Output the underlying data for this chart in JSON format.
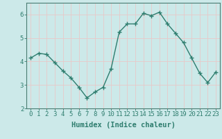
{
  "x": [
    0,
    1,
    2,
    3,
    4,
    5,
    6,
    7,
    8,
    9,
    10,
    11,
    12,
    13,
    14,
    15,
    16,
    17,
    18,
    19,
    20,
    21,
    22,
    23
  ],
  "y": [
    4.15,
    4.35,
    4.3,
    3.95,
    3.6,
    3.3,
    2.9,
    2.45,
    2.7,
    2.9,
    3.7,
    5.25,
    5.6,
    5.6,
    6.05,
    5.95,
    6.1,
    5.6,
    5.2,
    4.8,
    4.15,
    3.5,
    3.1,
    3.55
  ],
  "line_color": "#2e7d6e",
  "marker": "+",
  "markersize": 4,
  "linewidth": 1.0,
  "xlabel": "Humidex (Indice chaleur)",
  "xlim": [
    -0.5,
    23.5
  ],
  "ylim": [
    2,
    6.5
  ],
  "yticks": [
    2,
    3,
    4,
    5,
    6
  ],
  "xticks": [
    0,
    1,
    2,
    3,
    4,
    5,
    6,
    7,
    8,
    9,
    10,
    11,
    12,
    13,
    14,
    15,
    16,
    17,
    18,
    19,
    20,
    21,
    22,
    23
  ],
  "xtick_labels": [
    "0",
    "1",
    "2",
    "3",
    "4",
    "5",
    "6",
    "7",
    "8",
    "9",
    "10",
    "11",
    "12",
    "13",
    "14",
    "15",
    "16",
    "17",
    "18",
    "19",
    "20",
    "21",
    "22",
    "23"
  ],
  "bg_color": "#cce9e9",
  "grid_color_major": "#e8c8c8",
  "grid_color_minor": "#e8c8c8",
  "axis_color": "#4a7c72",
  "tick_color": "#2e7d6e",
  "label_fontsize": 7.5,
  "tick_fontsize": 6.5
}
